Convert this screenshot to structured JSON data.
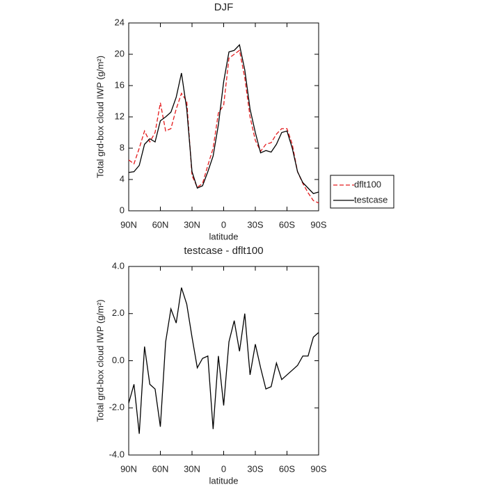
{
  "chart_data": [
    {
      "type": "line",
      "title": "DJF",
      "x_label": "latitude",
      "y_label": "Total grd-box cloud IWP (g/m²)",
      "x": [
        90,
        85,
        80,
        75,
        70,
        65,
        60,
        55,
        50,
        45,
        40,
        35,
        30,
        25,
        20,
        15,
        10,
        5,
        0,
        -5,
        -10,
        -15,
        -20,
        -25,
        -30,
        -35,
        -40,
        -45,
        -50,
        -55,
        -60,
        -65,
        -70,
        -75,
        -80,
        -85,
        -90
      ],
      "xlim": [
        90,
        -90
      ],
      "xticks": [
        {
          "value": 90,
          "label": "90N"
        },
        {
          "value": 60,
          "label": "60N"
        },
        {
          "value": 30,
          "label": "30N"
        },
        0,
        {
          "value": -30,
          "label": "30S"
        },
        {
          "value": -60,
          "label": "60S"
        },
        {
          "value": -90,
          "label": "90S"
        }
      ],
      "ylim": [
        0,
        24
      ],
      "yticks": [
        0,
        4,
        8,
        12,
        16,
        20,
        24
      ],
      "legend": "right",
      "series": [
        {
          "name": "dflt100",
          "color": "#e41a1c",
          "dashed": true,
          "values": [
            6.5,
            6,
            8,
            10.2,
            8.8,
            10,
            13.8,
            10.2,
            10.5,
            13,
            15,
            14,
            4.5,
            3.0,
            3.5,
            5.8,
            8,
            12.5,
            13.5,
            19.5,
            20,
            20.5,
            17,
            12,
            9,
            7.6,
            8.5,
            8.7,
            9.8,
            10.5,
            10.5,
            8.5,
            5,
            3.5,
            2.3,
            1.3,
            1.0
          ]
        },
        {
          "name": "testcase",
          "color": "#000000",
          "dashed": false,
          "values": [
            4.9,
            5.0,
            5.8,
            8.5,
            9.2,
            8.8,
            11.5,
            12,
            12.6,
            14.5,
            17.6,
            13,
            5,
            2.9,
            3.2,
            5,
            7,
            11,
            16.5,
            20.3,
            20.5,
            21.2,
            18,
            13,
            10,
            7.4,
            7.7,
            7.5,
            8.5,
            10,
            10.2,
            8,
            5,
            3.6,
            2.9,
            2.2,
            2.4
          ]
        }
      ]
    },
    {
      "type": "line",
      "title": "testcase - dflt100",
      "x_label": "latitude",
      "y_label": "Total grd-box cloud IWP (g/m²)",
      "x": [
        90,
        85,
        80,
        75,
        70,
        65,
        60,
        55,
        50,
        45,
        40,
        35,
        30,
        25,
        20,
        15,
        10,
        5,
        0,
        -5,
        -10,
        -15,
        -20,
        -25,
        -30,
        -35,
        -40,
        -45,
        -50,
        -55,
        -60,
        -65,
        -70,
        -75,
        -80,
        -85,
        -90
      ],
      "xlim": [
        90,
        -90
      ],
      "xticks": [
        {
          "value": 90,
          "label": "90N"
        },
        {
          "value": 60,
          "label": "60N"
        },
        {
          "value": 30,
          "label": "30N"
        },
        0,
        {
          "value": -30,
          "label": "30S"
        },
        {
          "value": -60,
          "label": "60S"
        },
        {
          "value": -90,
          "label": "90S"
        }
      ],
      "ylim": [
        -4,
        4
      ],
      "yticks": [
        {
          "value": -4,
          "label": "-4.0"
        },
        {
          "value": -2,
          "label": "-2.0"
        },
        {
          "value": 0,
          "label": "0.0"
        },
        {
          "value": 2,
          "label": "2.0"
        },
        {
          "value": 4,
          "label": "4.0"
        }
      ],
      "series": [
        {
          "color": "#000000",
          "dashed": false,
          "values": [
            -1.8,
            -1.0,
            -3.1,
            0.6,
            -1.0,
            -1.2,
            -2.8,
            0.8,
            2.2,
            1.6,
            3.1,
            2.4,
            1.0,
            -0.3,
            0.1,
            0.2,
            -2.9,
            0.2,
            -1.9,
            0.8,
            1.7,
            0.4,
            2.0,
            -0.6,
            0.7,
            -0.3,
            -1.2,
            -1.1,
            -0.1,
            -0.8,
            -0.6,
            -0.4,
            -0.2,
            0.2,
            0.2,
            1.0,
            1.2
          ]
        }
      ]
    }
  ]
}
